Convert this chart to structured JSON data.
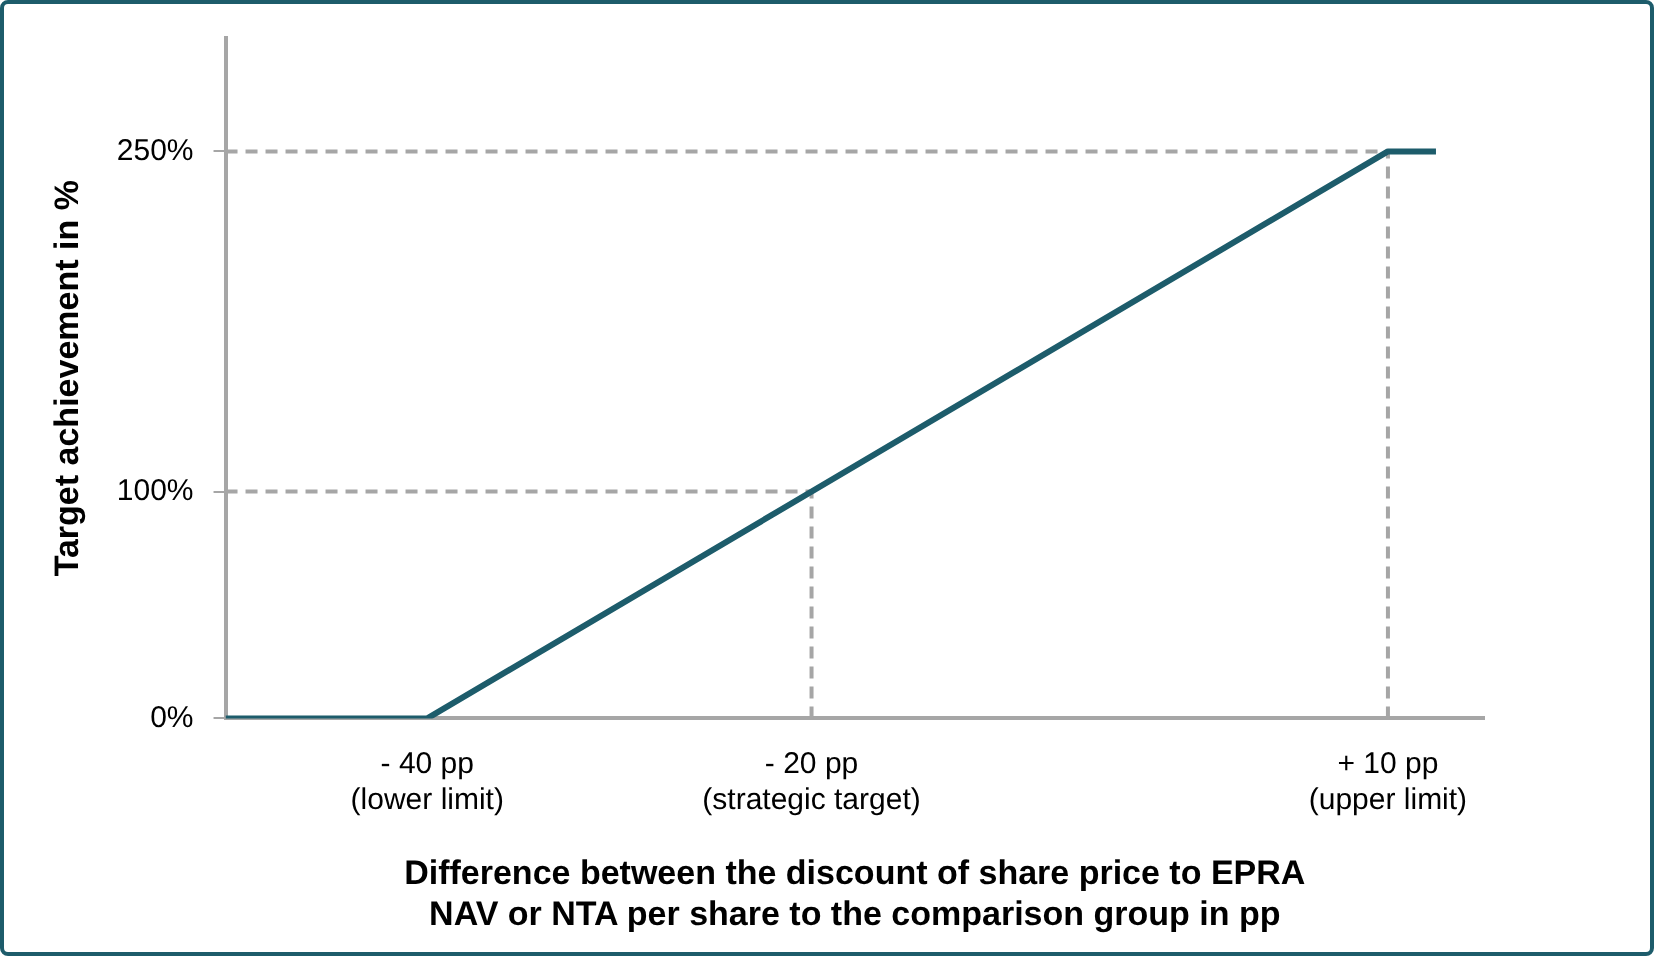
{
  "chart_data": {
    "type": "line",
    "xlabel": "Difference between the discount of share price to EPRA\nNAV or NTA per share to the comparison group in pp",
    "ylabel": "Target achievement in %",
    "x": [
      -50.5,
      -40,
      10,
      12.5
    ],
    "series": [
      {
        "color": "#1d5c6b",
        "values": [
          0,
          0,
          250,
          250
        ]
      }
    ],
    "xlim": [
      -50.5,
      15
    ],
    "xticks": [
      {
        "value": -40,
        "label": "- 40 pp\n(lower limit)"
      },
      {
        "value": -20,
        "label": "- 20 pp\n(strategic target)"
      },
      {
        "value": 10,
        "label": "+ 10 pp\n(upper limit)"
      }
    ],
    "ylim": [
      0,
      300
    ],
    "yticks": [
      {
        "value": 0,
        "label": "0%"
      },
      {
        "value": 100,
        "label": "100%"
      },
      {
        "value": 250,
        "label": "250%"
      }
    ],
    "ref_lines": [
      {
        "axis": "y",
        "value": 250,
        "color": "#a6a6a6",
        "line_style": "dashed"
      },
      {
        "axis": "y",
        "value": 100,
        "color": "#a6a6a6",
        "line_style": "dashed"
      },
      {
        "axis": "x",
        "value": -20,
        "color": "#a6a6a6",
        "line_style": "dashed"
      },
      {
        "axis": "x",
        "value": 10,
        "color": "#a6a6a6",
        "line_style": "dashed"
      }
    ],
    "grid": false,
    "legend": false,
    "marker": "none",
    "line_style": "solid"
  }
}
